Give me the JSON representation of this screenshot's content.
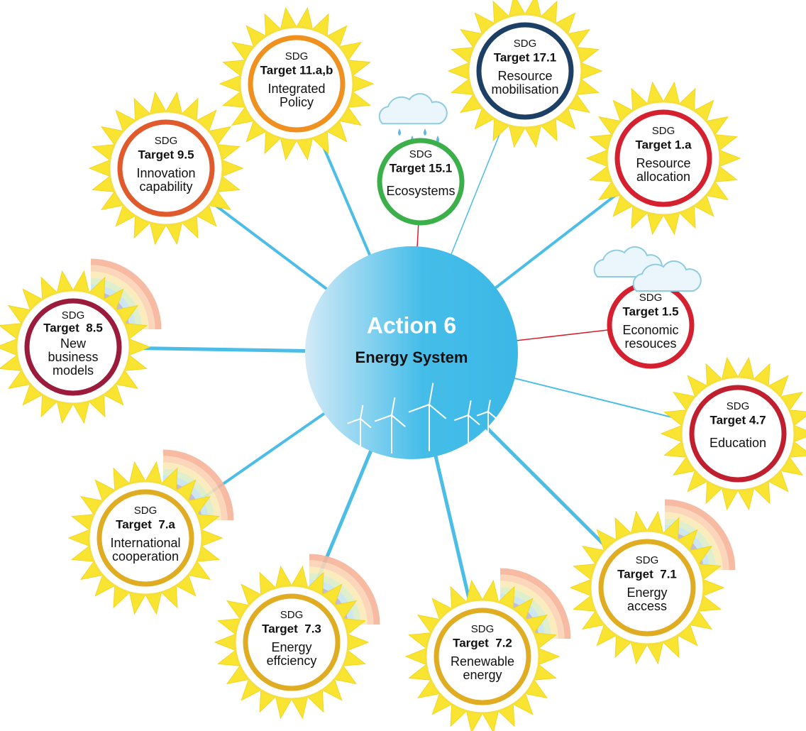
{
  "center": {
    "title": "Action 6",
    "subtitle": "Energy System"
  },
  "nodes": [
    {
      "sdg": "SDG",
      "target": "Target 11.a,b",
      "description": [
        "Integrated",
        "Policy"
      ]
    },
    {
      "sdg": "SDG",
      "target": "Target 17.1",
      "description": [
        "Resource",
        "mobilisation"
      ]
    },
    {
      "sdg": "SDG",
      "target": "Target 9.5",
      "description": [
        "Innovation",
        "capability"
      ]
    },
    {
      "sdg": "SDG",
      "target": "Target 15.1",
      "description": [
        "Ecosystems"
      ]
    },
    {
      "sdg": "SDG",
      "target": "Target 1.a",
      "description": [
        "Resource",
        "allocation"
      ]
    },
    {
      "sdg": "SDG",
      "target": "Target  8.5",
      "description": [
        "New",
        "business",
        "models"
      ]
    },
    {
      "sdg": "SDG",
      "target": "Target 1.5",
      "description": [
        "Economic",
        "resouces"
      ]
    },
    {
      "sdg": "SDG",
      "target": "Target 4.7",
      "description": [
        "Education"
      ]
    },
    {
      "sdg": "SDG",
      "target": "Target  7.a",
      "description": [
        "International",
        "cooperation"
      ]
    },
    {
      "sdg": "SDG",
      "target": "Target  7.3",
      "description": [
        "Energy",
        "effciency"
      ]
    },
    {
      "sdg": "SDG",
      "target": "Target  7.2",
      "description": [
        "Renewable",
        "energy"
      ]
    },
    {
      "sdg": "SDG",
      "target": "Target  7.1",
      "description": [
        "Energy",
        "access"
      ]
    }
  ]
}
